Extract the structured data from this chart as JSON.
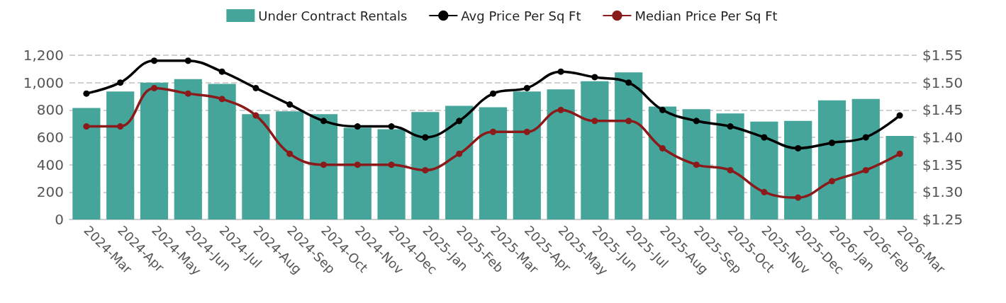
{
  "chart_data": {
    "type": "bar",
    "categories": [
      "2024-Mar",
      "2024-Apr",
      "2024-May",
      "2024-Jun",
      "2024-Jul",
      "2024-Aug",
      "2024-Sep",
      "2024-Oct",
      "2024-Nov",
      "2024-Dec",
      "2025-Jan",
      "2025-Feb",
      "2025-Mar",
      "2025-Apr",
      "2025-May",
      "2025-Jun",
      "2025-Jul",
      "2025-Aug",
      "2025-Sep",
      "2025-Oct",
      "2025-Nov",
      "2025-Dec",
      "2026-Jan",
      "2026-Feb",
      "2026-Mar"
    ],
    "series": [
      {
        "name": "Under Contract Rentals",
        "color": "#45a59a",
        "values": [
          815,
          935,
          1000,
          1025,
          990,
          770,
          790,
          770,
          670,
          660,
          785,
          830,
          820,
          935,
          950,
          1010,
          1075,
          825,
          805,
          775,
          715,
          720,
          870,
          880,
          610
        ]
      },
      {
        "name": "Avg Price Per Sq Ft",
        "type": "line",
        "axis": "y2",
        "color": "#000000",
        "values": [
          1.48,
          1.5,
          1.54,
          1.54,
          1.52,
          1.49,
          1.46,
          1.43,
          1.42,
          1.42,
          1.4,
          1.43,
          1.48,
          1.49,
          1.52,
          1.51,
          1.5,
          1.45,
          1.43,
          1.42,
          1.4,
          1.38,
          1.39,
          1.4,
          1.44
        ]
      },
      {
        "name": "Median Price Per Sq Ft",
        "type": "line",
        "axis": "y2",
        "color": "#8b1a1a",
        "values": [
          1.42,
          1.42,
          1.49,
          1.48,
          1.47,
          1.44,
          1.37,
          1.35,
          1.35,
          1.35,
          1.34,
          1.37,
          1.41,
          1.41,
          1.45,
          1.43,
          1.43,
          1.38,
          1.35,
          1.34,
          1.3,
          1.29,
          1.32,
          1.34,
          1.37
        ]
      }
    ],
    "ylim": [
      0,
      1200
    ],
    "yticks": [
      0,
      200,
      400,
      600,
      800,
      {
        "value": 1000,
        "label": "1,000"
      },
      {
        "value": 1200,
        "label": "1,200"
      }
    ],
    "y2lim": [
      1.25,
      1.55
    ],
    "y2ticks": [
      {
        "value": 1.25,
        "label": "$1.25"
      },
      {
        "value": 1.3,
        "label": "$1.30"
      },
      {
        "value": 1.35,
        "label": "$1.35"
      },
      {
        "value": 1.4,
        "label": "$1.40"
      },
      {
        "value": 1.45,
        "label": "$1.45"
      },
      {
        "value": 1.5,
        "label": "$1.50"
      },
      {
        "value": 1.55,
        "label": "$1.55"
      }
    ],
    "grid": "y",
    "legend": "top",
    "marker": "circle",
    "line_style": "solid"
  }
}
